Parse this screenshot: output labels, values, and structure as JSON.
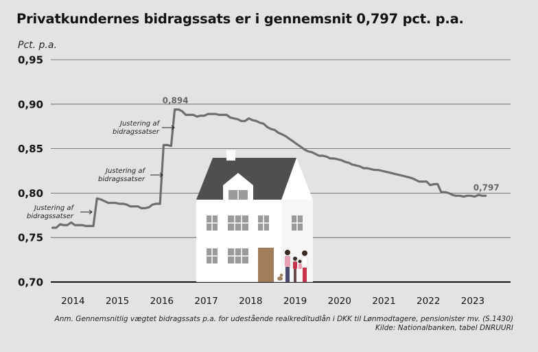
{
  "title": "Privatkundernes bidragssats er i gennemsnit 0,797 pct. p.a.",
  "unit_label": "Pct. p.a.",
  "notes": [
    "Anm. Gennemsnitlig vægtet bidragssats p.a. for udestående realkreditudlån i DKK til Lønmodtagere, pensionister mv. (S.1430)",
    "Kilde: Nationalbanken, tabel DNRUURI"
  ],
  "colors": {
    "background": "#e3e3e3",
    "line": "#6e6e6e",
    "grid": "#555555",
    "text": "#111111"
  },
  "chart_data": {
    "type": "line",
    "title": "Privatkundernes bidragssats er i gennemsnit 0,797 pct. p.a.",
    "ylabel": "Pct. p.a.",
    "xlabel": "",
    "ylim": [
      0.7,
      0.95
    ],
    "y_ticks": [
      0.7,
      0.75,
      0.8,
      0.85,
      0.9,
      0.95
    ],
    "y_tick_labels": [
      "0,70",
      "0,75",
      "0,80",
      "0,85",
      "0,90",
      "0,95"
    ],
    "xlim": [
      2013.5,
      2023.85
    ],
    "x_ticks": [
      2014,
      2015,
      2016,
      2017,
      2018,
      2019,
      2020,
      2021,
      2022,
      2023
    ],
    "x_tick_labels": [
      "2014",
      "2015",
      "2016",
      "2017",
      "2018",
      "2019",
      "2020",
      "2021",
      "2022",
      "2023"
    ],
    "grid": true,
    "legend": "none",
    "series": [
      {
        "x": [
          2013.54,
          2013.62,
          2013.71,
          2013.79,
          2013.87,
          2013.96,
          2014.04,
          2014.13,
          2014.21,
          2014.29,
          2014.38,
          2014.46,
          2014.54,
          2014.62,
          2014.71,
          2014.79,
          2014.87,
          2014.96,
          2015.04,
          2015.13,
          2015.21,
          2015.29,
          2015.38,
          2015.46,
          2015.54,
          2015.62,
          2015.71,
          2015.79,
          2015.87,
          2015.96,
          2016.04,
          2016.13,
          2016.21,
          2016.29,
          2016.38,
          2016.46,
          2016.54,
          2016.62,
          2016.71,
          2016.79,
          2016.87,
          2016.96,
          2017.04,
          2017.13,
          2017.21,
          2017.29,
          2017.38,
          2017.46,
          2017.54,
          2017.62,
          2017.71,
          2017.79,
          2017.87,
          2017.96,
          2018.04,
          2018.13,
          2018.21,
          2018.29,
          2018.38,
          2018.46,
          2018.54,
          2018.62,
          2018.71,
          2018.79,
          2018.87,
          2018.96,
          2019.04,
          2019.13,
          2019.21,
          2019.29,
          2019.38,
          2019.46,
          2019.54,
          2019.62,
          2019.71,
          2019.79,
          2019.87,
          2019.96,
          2020.04,
          2020.13,
          2020.21,
          2020.29,
          2020.38,
          2020.46,
          2020.54,
          2020.62,
          2020.71,
          2020.79,
          2020.87,
          2020.96,
          2021.04,
          2021.13,
          2021.21,
          2021.29,
          2021.38,
          2021.46,
          2021.54,
          2021.62,
          2021.71,
          2021.79,
          2021.87,
          2021.96,
          2022.04,
          2022.13,
          2022.21,
          2022.29,
          2022.38,
          2022.46,
          2022.54,
          2022.62,
          2022.71,
          2022.79,
          2022.87,
          2022.96,
          2023.04,
          2023.13,
          2023.21,
          2023.29
        ],
        "values": [
          0.761,
          0.761,
          0.765,
          0.764,
          0.764,
          0.767,
          0.764,
          0.764,
          0.764,
          0.763,
          0.763,
          0.763,
          0.794,
          0.793,
          0.791,
          0.789,
          0.789,
          0.789,
          0.788,
          0.788,
          0.787,
          0.785,
          0.785,
          0.785,
          0.783,
          0.783,
          0.784,
          0.787,
          0.788,
          0.788,
          0.854,
          0.854,
          0.853,
          0.894,
          0.894,
          0.892,
          0.888,
          0.888,
          0.888,
          0.886,
          0.887,
          0.887,
          0.889,
          0.889,
          0.889,
          0.888,
          0.888,
          0.888,
          0.885,
          0.884,
          0.883,
          0.881,
          0.881,
          0.884,
          0.882,
          0.881,
          0.879,
          0.878,
          0.874,
          0.872,
          0.871,
          0.868,
          0.866,
          0.864,
          0.861,
          0.858,
          0.855,
          0.852,
          0.849,
          0.847,
          0.846,
          0.844,
          0.842,
          0.842,
          0.841,
          0.839,
          0.839,
          0.838,
          0.837,
          0.835,
          0.834,
          0.832,
          0.831,
          0.83,
          0.828,
          0.828,
          0.827,
          0.826,
          0.826,
          0.825,
          0.824,
          0.823,
          0.822,
          0.821,
          0.82,
          0.819,
          0.818,
          0.817,
          0.815,
          0.813,
          0.813,
          0.813,
          0.809,
          0.81,
          0.81,
          0.801,
          0.801,
          0.8,
          0.798,
          0.797,
          0.797,
          0.796,
          0.797,
          0.797,
          0.796,
          0.798,
          0.797,
          0.797
        ]
      }
    ],
    "annotations": [
      {
        "text": "0,894",
        "x": 2016.29,
        "y": 0.894
      },
      {
        "text": "0,797",
        "x": 2023.29,
        "y": 0.797
      },
      {
        "lines": [
          "Justering af",
          "bidragssatser"
        ],
        "x": 2014.54,
        "y": 0.794
      },
      {
        "lines": [
          "Justering af",
          "bidragssatser"
        ],
        "x": 2016.04,
        "y": 0.854
      },
      {
        "lines": [
          "Justering af",
          "bidragssatser"
        ],
        "x": 2016.29,
        "y": 0.894
      }
    ]
  }
}
